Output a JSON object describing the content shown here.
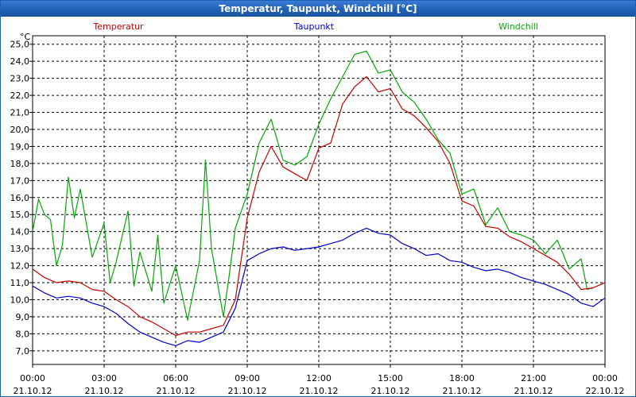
{
  "window": {
    "title": "Temperatur, Taupunkt, Windchill [°C]"
  },
  "chart_data": {
    "type": "line",
    "title": "Temperatur, Taupunkt, Windchill [°C]",
    "ylabel": "°C",
    "ylim": [
      6.2,
      25.5
    ],
    "yticks": [
      "7,0",
      "8,0",
      "9,0",
      "10,0",
      "11,0",
      "12,0",
      "13,0",
      "14,0",
      "15,0",
      "16,0",
      "17,0",
      "18,0",
      "19,0",
      "20,0",
      "21,0",
      "22,0",
      "23,0",
      "24,0",
      "25,0"
    ],
    "xlim": [
      0,
      24
    ],
    "xticks": [
      {
        "time": "00:00",
        "date": "21.10.12"
      },
      {
        "time": "03:00",
        "date": "21.10.12"
      },
      {
        "time": "06:00",
        "date": "21.10.12"
      },
      {
        "time": "09:00",
        "date": "21.10.12"
      },
      {
        "time": "12:00",
        "date": "21.10.12"
      },
      {
        "time": "15:00",
        "date": "21.10.12"
      },
      {
        "time": "18:00",
        "date": "21.10.12"
      },
      {
        "time": "21:00",
        "date": "21.10.12"
      },
      {
        "time": "00:00",
        "date": "22.10.12"
      }
    ],
    "grid": true,
    "series": [
      {
        "name": "Temperatur",
        "color": "#cc0000",
        "points": [
          [
            0,
            11.8
          ],
          [
            0.5,
            11.3
          ],
          [
            1,
            11.0
          ],
          [
            1.5,
            11.1
          ],
          [
            2,
            11.0
          ],
          [
            2.5,
            10.6
          ],
          [
            3,
            10.5
          ],
          [
            3.5,
            10.0
          ],
          [
            4,
            9.6
          ],
          [
            4.5,
            9.0
          ],
          [
            5,
            8.7
          ],
          [
            5.5,
            8.3
          ],
          [
            6,
            7.9
          ],
          [
            6.5,
            8.1
          ],
          [
            7,
            8.1
          ],
          [
            7.5,
            8.3
          ],
          [
            8,
            8.5
          ],
          [
            8.5,
            10.0
          ],
          [
            9,
            14.8
          ],
          [
            9.5,
            17.5
          ],
          [
            10,
            19.0
          ],
          [
            10.5,
            17.8
          ],
          [
            11,
            17.4
          ],
          [
            11.5,
            17.0
          ],
          [
            12,
            18.9
          ],
          [
            12.5,
            19.2
          ],
          [
            13,
            21.5
          ],
          [
            13.5,
            22.5
          ],
          [
            14,
            23.1
          ],
          [
            14.5,
            22.2
          ],
          [
            15,
            22.4
          ],
          [
            15.5,
            21.2
          ],
          [
            16,
            20.8
          ],
          [
            16.5,
            20.1
          ],
          [
            17,
            19.3
          ],
          [
            17.5,
            18.0
          ],
          [
            18,
            15.8
          ],
          [
            18.5,
            15.5
          ],
          [
            19,
            14.3
          ],
          [
            19.5,
            14.2
          ],
          [
            20,
            13.7
          ],
          [
            20.5,
            13.4
          ],
          [
            21,
            13.0
          ],
          [
            21.5,
            12.6
          ],
          [
            22,
            12.2
          ],
          [
            22.5,
            11.5
          ],
          [
            23,
            10.6
          ],
          [
            23.5,
            10.7
          ],
          [
            24,
            11.0
          ]
        ]
      },
      {
        "name": "Taupunkt",
        "color": "#0000cc",
        "points": [
          [
            0,
            10.8
          ],
          [
            0.5,
            10.4
          ],
          [
            1,
            10.1
          ],
          [
            1.5,
            10.2
          ],
          [
            2,
            10.1
          ],
          [
            2.5,
            9.8
          ],
          [
            3,
            9.6
          ],
          [
            3.5,
            9.2
          ],
          [
            4,
            8.6
          ],
          [
            4.5,
            8.1
          ],
          [
            5,
            7.8
          ],
          [
            5.5,
            7.5
          ],
          [
            6,
            7.3
          ],
          [
            6.5,
            7.6
          ],
          [
            7,
            7.5
          ],
          [
            7.5,
            7.8
          ],
          [
            8,
            8.1
          ],
          [
            8.5,
            9.5
          ],
          [
            9,
            12.3
          ],
          [
            9.5,
            12.7
          ],
          [
            10,
            13.0
          ],
          [
            10.5,
            13.1
          ],
          [
            11,
            12.9
          ],
          [
            11.5,
            13.0
          ],
          [
            12,
            13.1
          ],
          [
            12.5,
            13.3
          ],
          [
            13,
            13.5
          ],
          [
            13.5,
            13.9
          ],
          [
            14,
            14.2
          ],
          [
            14.5,
            13.9
          ],
          [
            15,
            13.8
          ],
          [
            15.5,
            13.3
          ],
          [
            16,
            13.0
          ],
          [
            16.5,
            12.6
          ],
          [
            17,
            12.7
          ],
          [
            17.5,
            12.3
          ],
          [
            18,
            12.2
          ],
          [
            18.5,
            11.9
          ],
          [
            19,
            11.7
          ],
          [
            19.5,
            11.8
          ],
          [
            20,
            11.6
          ],
          [
            20.5,
            11.3
          ],
          [
            21,
            11.1
          ],
          [
            21.5,
            10.9
          ],
          [
            22,
            10.6
          ],
          [
            22.5,
            10.3
          ],
          [
            23,
            9.8
          ],
          [
            23.5,
            9.6
          ],
          [
            24,
            10.1
          ]
        ]
      },
      {
        "name": "Windchill",
        "color": "#00aa00",
        "points": [
          [
            0,
            14.0
          ],
          [
            0.25,
            15.9
          ],
          [
            0.5,
            15.0
          ],
          [
            0.75,
            14.7
          ],
          [
            1,
            12.0
          ],
          [
            1.25,
            13.2
          ],
          [
            1.5,
            17.2
          ],
          [
            1.75,
            14.8
          ],
          [
            2,
            16.5
          ],
          [
            2.5,
            12.5
          ],
          [
            3,
            14.5
          ],
          [
            3.25,
            11.0
          ],
          [
            3.5,
            12.2
          ],
          [
            4,
            15.2
          ],
          [
            4.25,
            10.8
          ],
          [
            4.5,
            12.8
          ],
          [
            5,
            10.5
          ],
          [
            5.25,
            13.8
          ],
          [
            5.5,
            9.8
          ],
          [
            6,
            12.0
          ],
          [
            6.5,
            8.8
          ],
          [
            7,
            12.3
          ],
          [
            7.25,
            18.2
          ],
          [
            7.5,
            13.0
          ],
          [
            8,
            9.0
          ],
          [
            8.25,
            11.5
          ],
          [
            8.5,
            14.2
          ],
          [
            9,
            16.2
          ],
          [
            9.5,
            19.2
          ],
          [
            10,
            20.6
          ],
          [
            10.5,
            18.2
          ],
          [
            11,
            17.9
          ],
          [
            11.5,
            18.4
          ],
          [
            12,
            20.3
          ],
          [
            12.5,
            21.8
          ],
          [
            13,
            23.1
          ],
          [
            13.5,
            24.4
          ],
          [
            14,
            24.6
          ],
          [
            14.5,
            23.3
          ],
          [
            15,
            23.5
          ],
          [
            15.5,
            22.2
          ],
          [
            16,
            21.6
          ],
          [
            16.5,
            20.6
          ],
          [
            17,
            19.4
          ],
          [
            17.5,
            18.6
          ],
          [
            18,
            16.2
          ],
          [
            18.5,
            16.5
          ],
          [
            19,
            14.4
          ],
          [
            19.5,
            15.4
          ],
          [
            20,
            14.0
          ],
          [
            20.5,
            13.8
          ],
          [
            21,
            13.5
          ],
          [
            21.5,
            12.7
          ],
          [
            22,
            13.5
          ],
          [
            22.5,
            11.8
          ],
          [
            23,
            12.4
          ],
          [
            23.25,
            10.6
          ],
          [
            23.5,
            10.7
          ],
          [
            24,
            11.0
          ]
        ]
      }
    ]
  }
}
